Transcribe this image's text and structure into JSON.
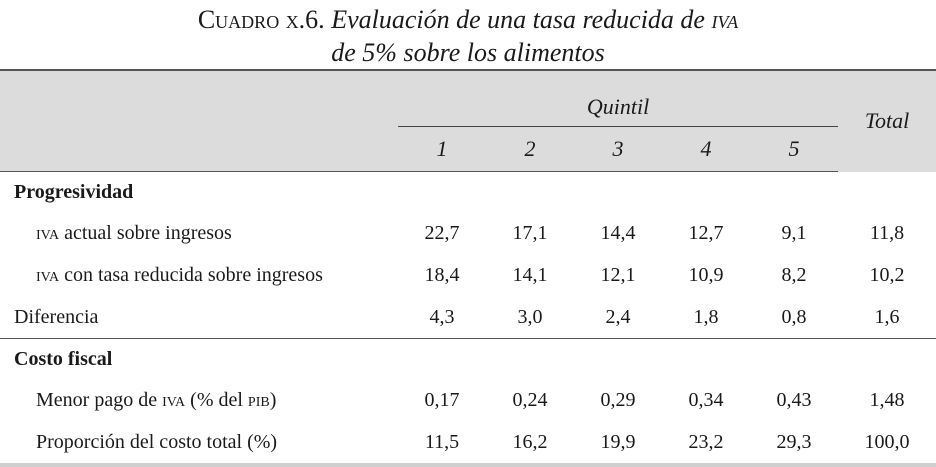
{
  "caption": {
    "prefix": "Cuadro x.6.",
    "title_part1": "Evaluación de una tasa reducida de",
    "title_iva": "iva",
    "title_line2": "de 5% sobre los alimentos"
  },
  "header": {
    "group_label": "Quintil",
    "quintiles": [
      "1",
      "2",
      "3",
      "4",
      "5"
    ],
    "total_label": "Total"
  },
  "sections": [
    {
      "title": "Progresividad",
      "rows": [
        {
          "abbr": "iva",
          "label": " actual sobre ingresos",
          "values": [
            "22,7",
            "17,1",
            "14,4",
            "12,7",
            "9,1",
            "11,8"
          ]
        },
        {
          "abbr": "iva",
          "label": " con tasa reducida sobre ingresos",
          "values": [
            "18,4",
            "14,1",
            "12,1",
            "10,9",
            "8,2",
            "10,2"
          ]
        },
        {
          "label": "Diferencia",
          "values": [
            "4,3",
            "3,0",
            "2,4",
            "1,8",
            "0,8",
            "1,6"
          ]
        }
      ]
    },
    {
      "title": "Costo fiscal",
      "rows": [
        {
          "pre": "Menor pago de ",
          "abbr": "iva",
          "mid": " (% del ",
          "abbr2": "pib",
          "post": ")",
          "values": [
            "0,17",
            "0,24",
            "0,29",
            "0,34",
            "0,43",
            "1,48"
          ]
        },
        {
          "label": "Proporción del costo total (%)",
          "values": [
            "11,5",
            "16,2",
            "19,9",
            "23,2",
            "29,3",
            "100,0"
          ]
        }
      ]
    }
  ]
}
